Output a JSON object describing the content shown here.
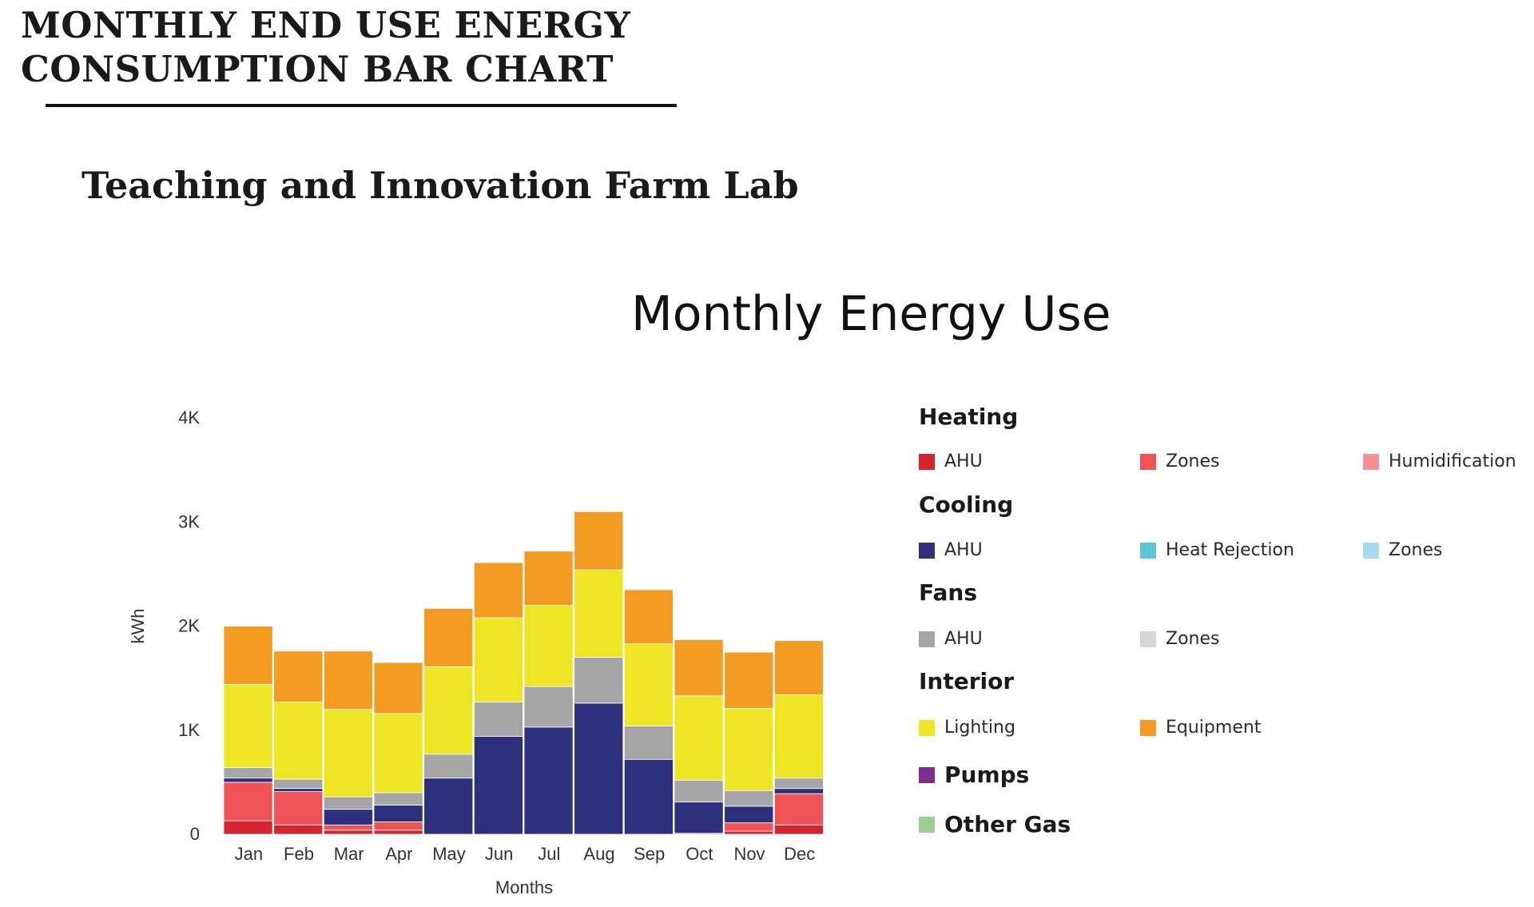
{
  "header": {
    "title_line1": "MONTHLY END USE ENERGY",
    "title_line2": "CONSUMPTION BAR CHART",
    "building": "Teaching and Innovation Farm Lab"
  },
  "chart_data": {
    "type": "bar",
    "stacked": true,
    "title": "Monthly Energy Use",
    "xlabel": "Months",
    "ylabel": "kWh",
    "ylim": [
      0,
      4000
    ],
    "yticks": [
      0,
      1000,
      2000,
      3000,
      4000
    ],
    "ytick_labels": [
      "0",
      "1K",
      "2K",
      "3K",
      "4K"
    ],
    "grid": false,
    "legend_position": "right",
    "categories": [
      "Jan",
      "Feb",
      "Mar",
      "Apr",
      "May",
      "Jun",
      "Jul",
      "Aug",
      "Sep",
      "Oct",
      "Nov",
      "Dec"
    ],
    "series": [
      {
        "name": "AHU",
        "group": "Heating",
        "color": "#d42530",
        "values": [
          130,
          90,
          40,
          40,
          0,
          0,
          0,
          0,
          0,
          0,
          30,
          90
        ]
      },
      {
        "name": "Zones",
        "group": "Heating",
        "color": "#ef5356",
        "values": [
          370,
          320,
          50,
          80,
          0,
          0,
          0,
          0,
          0,
          10,
          80,
          300
        ]
      },
      {
        "name": "Humidification",
        "group": "Heating",
        "color": "#f48f94",
        "values": [
          0,
          0,
          0,
          0,
          0,
          0,
          0,
          0,
          0,
          0,
          0,
          0
        ]
      },
      {
        "name": "AHU",
        "group": "Cooling",
        "color": "#2c2f7c",
        "values": [
          40,
          30,
          150,
          160,
          540,
          940,
          1030,
          1260,
          720,
          300,
          160,
          50
        ]
      },
      {
        "name": "Heat Rejection",
        "group": "Cooling",
        "color": "#5bc6d8",
        "values": [
          0,
          0,
          0,
          0,
          0,
          0,
          0,
          0,
          0,
          0,
          0,
          0
        ]
      },
      {
        "name": "Zones",
        "group": "Cooling",
        "color": "#a8dbeb",
        "values": [
          0,
          0,
          0,
          0,
          0,
          0,
          0,
          0,
          0,
          0,
          0,
          0
        ]
      },
      {
        "name": "AHU",
        "group": "Fans",
        "color": "#a6a6a6",
        "values": [
          100,
          90,
          120,
          120,
          230,
          330,
          390,
          440,
          320,
          210,
          150,
          100
        ]
      },
      {
        "name": "Zones",
        "group": "Fans",
        "color": "#d6d6d6",
        "values": [
          0,
          0,
          0,
          0,
          0,
          0,
          0,
          0,
          0,
          0,
          0,
          0
        ]
      },
      {
        "name": "Lighting",
        "group": "Interior",
        "color": "#eee625",
        "values": [
          800,
          740,
          840,
          760,
          840,
          810,
          780,
          840,
          790,
          810,
          790,
          800
        ]
      },
      {
        "name": "Equipment",
        "group": "Interior",
        "color": "#f39b23",
        "values": [
          560,
          490,
          560,
          490,
          560,
          530,
          520,
          560,
          520,
          540,
          540,
          520
        ]
      },
      {
        "name": "Pumps",
        "group": "",
        "color": "#7c2f8e",
        "values": [
          0,
          0,
          0,
          0,
          0,
          0,
          0,
          0,
          0,
          0,
          0,
          0
        ]
      },
      {
        "name": "Other Gas",
        "group": "",
        "color": "#98d18f",
        "values": [
          0,
          0,
          0,
          0,
          0,
          0,
          0,
          0,
          0,
          0,
          0,
          0
        ]
      }
    ]
  },
  "legend": {
    "heating": {
      "title": "Heating",
      "ahu": "AHU",
      "zones": "Zones",
      "humidification": "Humidification"
    },
    "cooling": {
      "title": "Cooling",
      "ahu": "AHU",
      "heat_rejection": "Heat Rejection",
      "zones": "Zones"
    },
    "fans": {
      "title": "Fans",
      "ahu": "AHU",
      "zones": "Zones"
    },
    "interior": {
      "title": "Interior",
      "lighting": "Lighting",
      "equipment": "Equipment"
    },
    "pumps": "Pumps",
    "other_gas": "Other Gas",
    "colors": {
      "heating_ahu": "#d42530",
      "heating_zones": "#ef5356",
      "heating_humidification": "#f48f94",
      "cooling_ahu": "#2c2f7c",
      "cooling_heat_rejection": "#5bc6d8",
      "cooling_zones": "#a8dbeb",
      "fans_ahu": "#a6a6a6",
      "fans_zones": "#d6d6d6",
      "interior_lighting": "#eee625",
      "interior_equipment": "#f39b23",
      "pumps": "#7c2f8e",
      "other_gas": "#98d18f"
    }
  }
}
